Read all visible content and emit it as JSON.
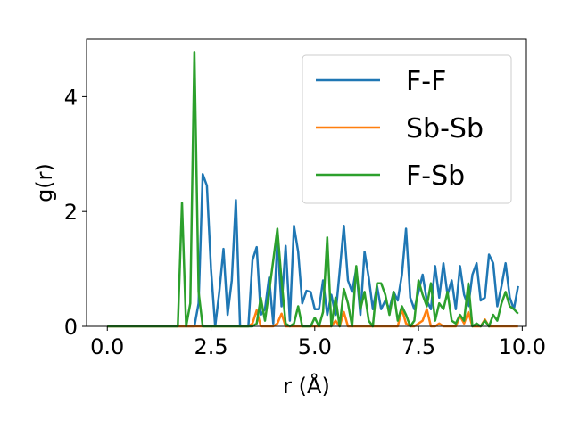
{
  "chart_data": {
    "type": "line",
    "title": "",
    "xlabel": "r (Å)",
    "ylabel": "g(r)",
    "xlim": [
      -0.5,
      10.1
    ],
    "ylim": [
      0,
      5.0
    ],
    "xticks": [
      0.0,
      2.5,
      5.0,
      7.5,
      10.0
    ],
    "xtick_labels": [
      "0.0",
      "2.5",
      "5.0",
      "7.5",
      "10.0"
    ],
    "yticks": [
      0,
      2,
      4
    ],
    "ytick_labels": [
      "0",
      "2",
      "4"
    ],
    "grid": false,
    "legend_position": "top-right",
    "series": [
      {
        "name": "F-F",
        "color": "#1f77b4",
        "x": [
          0.0,
          1.9,
          2.1,
          2.2,
          2.3,
          2.4,
          2.5,
          2.6,
          2.7,
          2.8,
          2.9,
          3.0,
          3.1,
          3.2,
          3.3,
          3.4,
          3.5,
          3.6,
          3.7,
          3.8,
          3.9,
          4.0,
          4.1,
          4.2,
          4.3,
          4.4,
          4.5,
          4.6,
          4.7,
          4.8,
          4.9,
          5.0,
          5.1,
          5.2,
          5.3,
          5.4,
          5.5,
          5.6,
          5.7,
          5.8,
          5.9,
          6.0,
          6.1,
          6.2,
          6.3,
          6.4,
          6.5,
          6.6,
          6.7,
          6.8,
          6.9,
          7.0,
          7.1,
          7.2,
          7.3,
          7.4,
          7.5,
          7.6,
          7.7,
          7.8,
          7.9,
          8.0,
          8.1,
          8.2,
          8.3,
          8.4,
          8.5,
          8.6,
          8.7,
          8.8,
          8.9,
          9.0,
          9.1,
          9.2,
          9.3,
          9.4,
          9.5,
          9.6,
          9.7,
          9.8
        ],
        "y": [
          0,
          0,
          0,
          0.4,
          2.65,
          2.45,
          1.0,
          0,
          0.6,
          1.35,
          0.2,
          0.8,
          2.2,
          0,
          0,
          0,
          1.15,
          1.38,
          0.2,
          0.3,
          0.85,
          0.05,
          1.5,
          0.35,
          1.4,
          0.1,
          1.75,
          1.3,
          0.4,
          0.62,
          0.6,
          0.3,
          0.3,
          0.8,
          0.2,
          0.55,
          0.2,
          0.95,
          1.75,
          0.8,
          0.6,
          1.0,
          0.2,
          1.3,
          0.85,
          0.3,
          0.7,
          0.3,
          0.45,
          0.3,
          0.6,
          0.45,
          0.9,
          1.7,
          0.5,
          0.3,
          0.6,
          0.9,
          0.45,
          0.3,
          1.05,
          0.5,
          1.1,
          0.55,
          0.8,
          0.3,
          1.05,
          0.55,
          0.35,
          0.9,
          1.1,
          0.45,
          0.5,
          1.25,
          1.1,
          0.35,
          0.7,
          1.1,
          0.5,
          0.3
        ],
        "x_tail": [
          9.9
        ],
        "y_tail": [
          0.7
        ]
      },
      {
        "name": "Sb-Sb",
        "color": "#ff7f0e",
        "x": [
          0.0,
          3.4,
          3.5,
          3.6,
          3.7,
          3.8,
          4.0,
          4.1,
          4.2,
          4.3,
          5.0,
          5.4,
          5.5,
          5.6,
          5.7,
          5.8,
          5.9,
          7.0,
          7.1,
          7.2,
          7.3,
          7.4,
          7.6,
          7.7,
          7.8,
          7.9,
          8.0,
          8.1,
          8.2,
          8.4,
          8.5,
          8.6,
          8.7,
          8.8,
          9.0,
          9.1,
          9.2,
          9.3,
          9.9
        ],
        "y": [
          0,
          0,
          0.05,
          0.28,
          0,
          0,
          0,
          0.05,
          0.22,
          0,
          0,
          0,
          0.1,
          0,
          0.25,
          0,
          0,
          0,
          0.3,
          0.05,
          0,
          0,
          0.1,
          0.3,
          0,
          0,
          0.05,
          0,
          0,
          0,
          0.18,
          0.05,
          0.25,
          0,
          0,
          0.12,
          0,
          0,
          0
        ]
      },
      {
        "name": "F-Sb",
        "color": "#2ca02c",
        "x": [
          0.0,
          1.7,
          1.8,
          1.9,
          2.0,
          2.1,
          2.2,
          2.3,
          3.5,
          3.6,
          3.7,
          3.8,
          3.9,
          4.0,
          4.1,
          4.2,
          4.3,
          4.4,
          4.5,
          4.6,
          4.7,
          4.8,
          4.9,
          5.0,
          5.1,
          5.2,
          5.3,
          5.4,
          5.5,
          5.6,
          5.7,
          5.8,
          5.9,
          6.0,
          6.1,
          6.2,
          6.3,
          6.4,
          6.5,
          6.6,
          6.7,
          6.8,
          6.9,
          7.0,
          7.1,
          7.2,
          7.3,
          7.4,
          7.5,
          7.6,
          7.7,
          7.8,
          7.9,
          8.0,
          8.1,
          8.2,
          8.3,
          8.4,
          8.5,
          8.6,
          8.7,
          8.8,
          8.9,
          9.0,
          9.1,
          9.2,
          9.3,
          9.4,
          9.5,
          9.6,
          9.7,
          9.8
        ],
        "y": [
          0,
          0,
          2.15,
          0,
          0.4,
          4.78,
          0.6,
          0,
          0,
          0.05,
          0.5,
          0.1,
          0.6,
          1.15,
          1.7,
          0.8,
          0.05,
          0,
          0.05,
          0.35,
          0,
          0,
          0,
          0.15,
          0,
          0.25,
          1.55,
          0,
          0.5,
          0,
          0.65,
          0.4,
          0,
          1.05,
          0.3,
          0.6,
          0.1,
          0,
          0.75,
          0.75,
          0.55,
          0.2,
          0.6,
          0.1,
          0.35,
          0.2,
          0,
          0.1,
          0.8,
          0.55,
          0.35,
          0.75,
          0.1,
          0.4,
          0.3,
          0.6,
          0.1,
          0.05,
          0.2,
          0.1,
          0.75,
          0,
          0.05,
          0,
          0.1,
          0,
          0.2,
          0.1,
          0.4,
          0.6,
          0.35,
          0.3
        ],
        "x_tail": [
          9.9
        ],
        "y_tail": [
          0.22
        ]
      }
    ]
  }
}
